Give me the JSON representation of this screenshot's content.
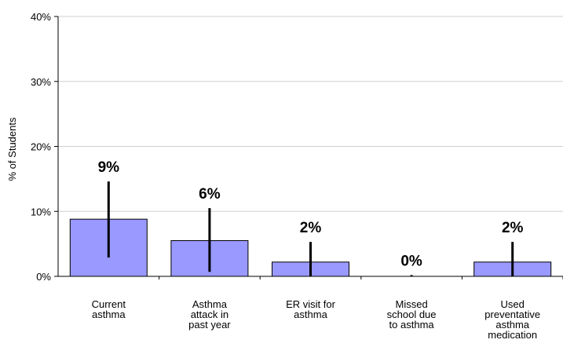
{
  "chart_data": {
    "type": "bar",
    "ylabel": "% of Students",
    "xlabel": "",
    "title": "",
    "ylim": [
      0,
      40
    ],
    "yticks": [
      0,
      10,
      20,
      30,
      40
    ],
    "ytick_labels": [
      "0%",
      "10%",
      "20%",
      "30%",
      "40%"
    ],
    "grid": "horizontal",
    "categories": [
      [
        "Current",
        "asthma"
      ],
      [
        "Asthma",
        "attack in",
        "past year"
      ],
      [
        "ER visit for",
        "asthma"
      ],
      [
        "Missed",
        "school due",
        "to asthma"
      ],
      [
        "Used",
        "preventative",
        "asthma",
        "medication"
      ]
    ],
    "values": [
      8.8,
      5.5,
      2.2,
      0,
      2.2
    ],
    "error_low": [
      2.9,
      0.7,
      0,
      0,
      0
    ],
    "error_high": [
      14.6,
      10.5,
      5.3,
      0.2,
      5.3
    ],
    "data_labels": [
      "9%",
      "6%",
      "2%",
      "0%",
      "2%"
    ],
    "colors": {
      "bar_fill": "#9999ff",
      "bar_stroke": "#000000",
      "error_bar": "#000000",
      "grid": "#d0d0d0"
    }
  }
}
